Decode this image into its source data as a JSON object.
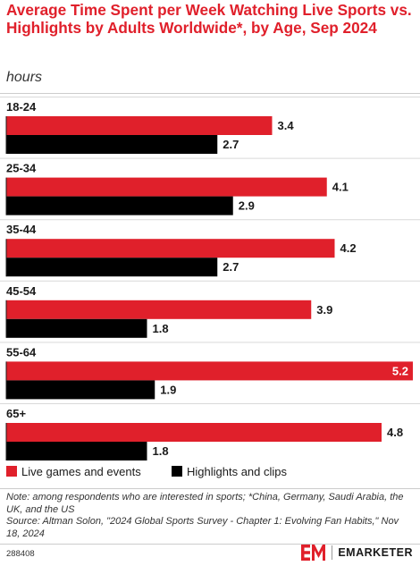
{
  "chart_data": {
    "type": "bar",
    "orientation": "horizontal",
    "title": "Average Time Spent per Week Watching Live Sports vs. Highlights by Adults Worldwide*, by Age, Sep 2024",
    "subtitle": "hours",
    "categories": [
      "18-24",
      "25-34",
      "35-44",
      "45-54",
      "55-64",
      "65+"
    ],
    "series": [
      {
        "name": "Live games and events",
        "color": "#e0202b",
        "values": [
          3.4,
          4.1,
          4.2,
          3.9,
          5.2,
          4.8
        ]
      },
      {
        "name": "Highlights and clips",
        "color": "#000000",
        "values": [
          2.7,
          2.9,
          2.7,
          1.8,
          1.9,
          1.8
        ]
      }
    ],
    "xlim": [
      0,
      5.2
    ],
    "grid": false,
    "legend": "bottom"
  },
  "footer": {
    "note": "Note: among respondents who are interested in sports; *China, Germany, Saudi Arabia, the UK, and the US",
    "source": "Source: Altman Solon, \"2024 Global Sports Survey - Chapter 1: Evolving Fan Habits,\" Nov 18, 2024",
    "chart_id": "288408"
  },
  "brand": {
    "name": "EMARKETER",
    "color": "#e0202b"
  }
}
